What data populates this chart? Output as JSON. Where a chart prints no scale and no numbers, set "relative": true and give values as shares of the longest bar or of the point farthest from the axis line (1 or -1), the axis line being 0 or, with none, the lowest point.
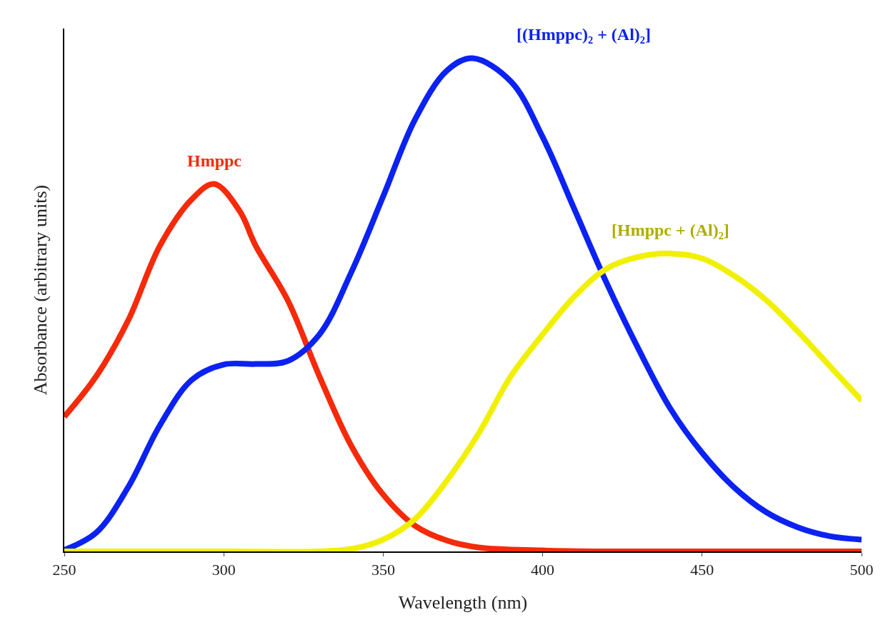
{
  "chart_data": {
    "type": "line",
    "xlabel": "Wavelength (nm)",
    "ylabel": "Absorbance (arbitrary units)",
    "relative": true,
    "xlim": [
      250,
      500
    ],
    "xticks": [
      250,
      300,
      350,
      400,
      450,
      500
    ],
    "grid": false,
    "legend": false,
    "marker": "none",
    "line_style": "solid",
    "series": [
      {
        "name": "Hmppc",
        "color": "#f52a0a",
        "x": [
          250,
          260,
          270,
          280,
          290,
          297,
          305,
          310,
          320,
          330,
          340,
          350,
          360,
          370,
          380,
          400,
          420,
          450,
          500
        ],
        "values": [
          0.273,
          0.355,
          0.468,
          0.62,
          0.714,
          0.745,
          0.69,
          0.62,
          0.51,
          0.355,
          0.214,
          0.115,
          0.052,
          0.022,
          0.008,
          0.002,
          0,
          0,
          0
        ]
      },
      {
        "name": "[(Hmppc)₂ + (Al)₂]",
        "color": "#0b22f2",
        "x": [
          250,
          260,
          270,
          280,
          290,
          300,
          310,
          320,
          330,
          340,
          350,
          360,
          370,
          378,
          390,
          400,
          410,
          420,
          430,
          440,
          450,
          460,
          470,
          480,
          490,
          500
        ],
        "values": [
          0.003,
          0.038,
          0.13,
          0.256,
          0.348,
          0.379,
          0.38,
          0.386,
          0.44,
          0.566,
          0.72,
          0.876,
          0.975,
          1.0,
          0.953,
          0.84,
          0.693,
          0.545,
          0.411,
          0.29,
          0.2,
          0.13,
          0.08,
          0.049,
          0.031,
          0.024
        ]
      },
      {
        "name": "[Hmppc + (Al)₂]",
        "color": "#f0f000",
        "x": [
          250,
          300,
          330,
          340,
          350,
          360,
          370,
          380,
          390,
          400,
          410,
          420,
          430,
          440,
          450,
          460,
          470,
          480,
          490,
          500
        ],
        "values": [
          0,
          0,
          0,
          0.005,
          0.024,
          0.066,
          0.144,
          0.24,
          0.355,
          0.44,
          0.517,
          0.573,
          0.597,
          0.604,
          0.594,
          0.559,
          0.51,
          0.446,
          0.376,
          0.306
        ]
      }
    ]
  }
}
